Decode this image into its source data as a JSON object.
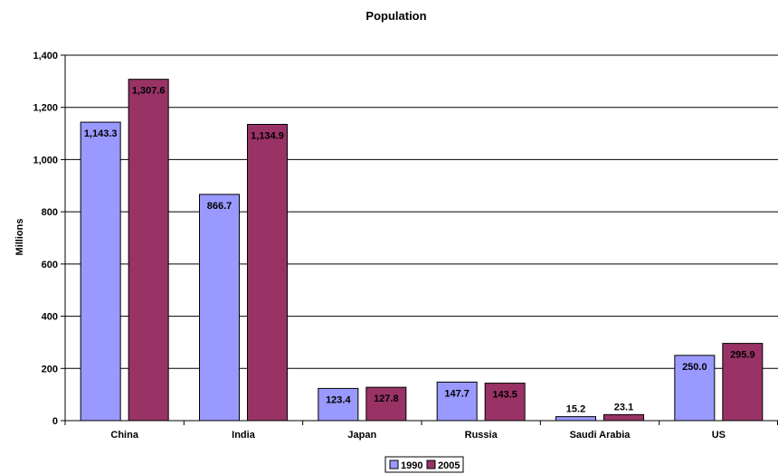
{
  "chart_data": {
    "type": "bar",
    "title": "Population",
    "xlabel": "",
    "ylabel": "Millions",
    "ylim": [
      0,
      1400
    ],
    "yticks": [
      0,
      200,
      400,
      600,
      800,
      1000,
      1200,
      1400
    ],
    "ytick_labels": [
      "0",
      "200",
      "400",
      "600",
      "800",
      "1,000",
      "1,200",
      "1,400"
    ],
    "grid": true,
    "legend_position": "bottom",
    "categories": [
      "China",
      "India",
      "Japan",
      "Russia",
      "Saudi Arabia",
      "US"
    ],
    "series": [
      {
        "name": "1990",
        "color": "#9999ff",
        "values": [
          1143.3,
          866.7,
          123.4,
          147.7,
          15.2,
          250.0
        ],
        "labels": [
          "1,143.3",
          "866.7",
          "123.4",
          "147.7",
          "15.2",
          "250.0"
        ]
      },
      {
        "name": "2005",
        "color": "#993366",
        "values": [
          1307.6,
          1134.9,
          127.8,
          143.5,
          23.1,
          295.9
        ],
        "labels": [
          "1,307.6",
          "1,134.9",
          "127.8",
          "143.5",
          "23.1",
          "295.9"
        ]
      }
    ]
  }
}
